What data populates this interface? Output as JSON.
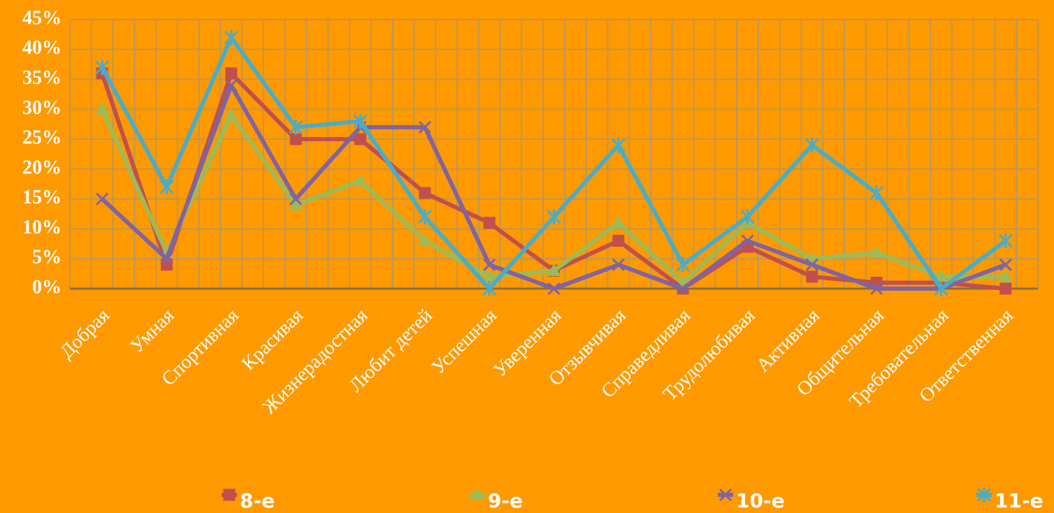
{
  "chart_data": {
    "type": "line",
    "categories": [
      "Добрая",
      "Умная",
      "Спортивная",
      "Красивая",
      "Жизнерадостная",
      "Любит детей",
      "Успешная",
      "Уверенная",
      "Отзывчивая",
      "Справедливая",
      "Трудолюбивая",
      "Активная",
      "Общительная",
      "Требовательная",
      "Ответственная"
    ],
    "series": [
      {
        "name": "8-е",
        "color": "#c0504d",
        "values": [
          36,
          4,
          36,
          25,
          25,
          16,
          11,
          3,
          8,
          0,
          7,
          2,
          1,
          1,
          0
        ]
      },
      {
        "name": "9-е",
        "color": "#9bbb59",
        "values": [
          30,
          6,
          29,
          14,
          18,
          8,
          2,
          3,
          11,
          1,
          11,
          5,
          6,
          2,
          2
        ]
      },
      {
        "name": "10-е",
        "color": "#8064a2",
        "values": [
          15,
          5,
          34,
          15,
          27,
          27,
          4,
          0,
          4,
          0,
          8,
          4,
          0,
          0,
          4
        ]
      },
      {
        "name": "11-е",
        "color": "#4bacc6",
        "values": [
          37,
          17,
          42,
          27,
          28,
          12,
          0,
          12,
          24,
          4,
          12,
          24,
          16,
          0,
          8
        ]
      }
    ],
    "ylim": [
      0,
      45
    ],
    "yticks": [
      {
        "value": 0,
        "label": "0%"
      },
      {
        "value": 5,
        "label": "5%"
      },
      {
        "value": 10,
        "label": "10%"
      },
      {
        "value": 15,
        "label": "15%"
      },
      {
        "value": 20,
        "label": "20%"
      },
      {
        "value": 25,
        "label": "25%"
      },
      {
        "value": 30,
        "label": "30%"
      },
      {
        "value": 35,
        "label": "35%"
      },
      {
        "value": 40,
        "label": "40%"
      },
      {
        "value": 45,
        "label": "45%"
      }
    ],
    "grid": true
  }
}
